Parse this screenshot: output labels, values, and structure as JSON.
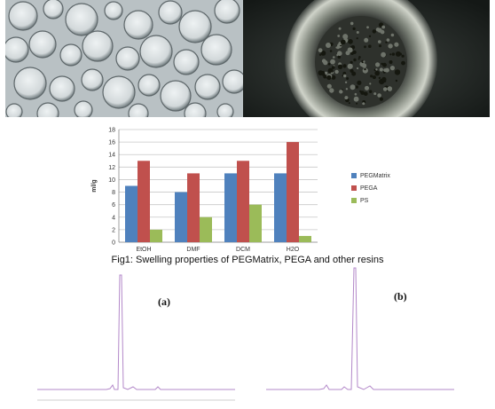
{
  "chart_data": {
    "type": "bar",
    "categories": [
      "EtOH",
      "DMF",
      "DCM",
      "H2O"
    ],
    "series": [
      {
        "name": "PEGMatrix",
        "color": "#4f81bd",
        "values": [
          9,
          8,
          11,
          11
        ]
      },
      {
        "name": "PEGA",
        "color": "#c0504d",
        "values": [
          13,
          11,
          13,
          16
        ]
      },
      {
        "name": "PS",
        "color": "#9bbb59",
        "values": [
          2,
          4,
          6,
          1
        ]
      }
    ],
    "ylabel": "ml/g",
    "ylim": [
      0,
      18
    ],
    "yticks": [
      0,
      2,
      4,
      6,
      8,
      10,
      12,
      14,
      16,
      18
    ],
    "grid": true,
    "legend": "right"
  },
  "caption": "Fig1: Swelling properties of PEGMatrix, PEGA and other resins",
  "traces": [
    {
      "label": "(a)"
    },
    {
      "label": "(b)"
    }
  ],
  "trace_color": "#b388c9"
}
